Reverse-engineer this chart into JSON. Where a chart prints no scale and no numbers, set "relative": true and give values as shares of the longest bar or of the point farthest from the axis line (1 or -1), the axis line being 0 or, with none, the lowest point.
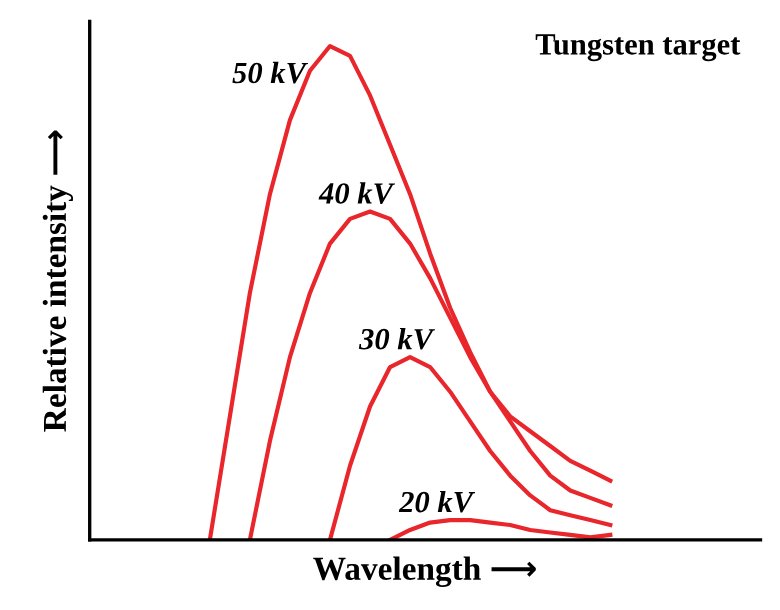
{
  "chart_data": {
    "type": "line",
    "relative": true,
    "xlabel": "Wavelength ⟶",
    "ylabel": "Relative intensity ⟶",
    "annotations": [
      "Tungsten target"
    ],
    "legend": false,
    "marker": "none",
    "line_style": "solid",
    "categories": [
      null,
      null,
      null,
      null,
      null,
      null,
      null,
      null,
      null,
      null,
      null,
      null,
      null,
      null,
      null,
      null,
      null,
      null,
      null,
      null,
      null
    ],
    "series": [
      {
        "name": "50 kV",
        "color": "#e8262b",
        "values": [
          0,
          0.25,
          0.5,
          0.7,
          0.85,
          0.95,
          1.0,
          0.98,
          0.9,
          0.8,
          0.7,
          0.58,
          0.47,
          0.38,
          0.3,
          0.25,
          0.22,
          0.19,
          0.16,
          0.14,
          0.12
        ]
      },
      {
        "name": "40 kV",
        "color": "#e8262b",
        "values": [
          null,
          null,
          0,
          0.2,
          0.37,
          0.5,
          0.6,
          0.65,
          0.665,
          0.65,
          0.6,
          0.53,
          0.45,
          0.37,
          0.3,
          0.24,
          0.18,
          0.13,
          0.1,
          0.085,
          0.07
        ]
      },
      {
        "name": "30 kV",
        "color": "#e8262b",
        "values": [
          null,
          null,
          null,
          null,
          null,
          null,
          0,
          0.15,
          0.27,
          0.35,
          0.37,
          0.35,
          0.3,
          0.24,
          0.18,
          0.13,
          0.09,
          0.06,
          0.05,
          0.04,
          0.03
        ]
      },
      {
        "name": "20 kV",
        "color": "#e8262b",
        "values": [
          null,
          null,
          null,
          null,
          null,
          null,
          null,
          null,
          null,
          0,
          0.02,
          0.035,
          0.04,
          0.04,
          0.035,
          0.03,
          0.02,
          0.015,
          0.01,
          0.005,
          0.01
        ]
      }
    ]
  }
}
